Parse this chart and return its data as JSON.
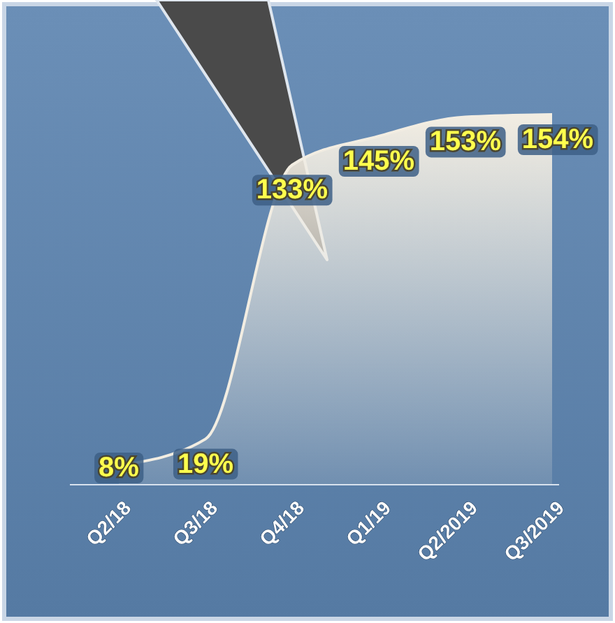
{
  "chart_data": {
    "type": "area",
    "relative": false,
    "categories": [
      "Q2/18",
      "Q3/18",
      "Q4/18",
      "Q1/19",
      "Q2/2019",
      "Q3/2019"
    ],
    "values": [
      8,
      19,
      133,
      145,
      153,
      154
    ],
    "value_labels": [
      "8%",
      "19%",
      "133%",
      "145%",
      "153%",
      "154%"
    ],
    "color": "#f2ede2"
  }
}
